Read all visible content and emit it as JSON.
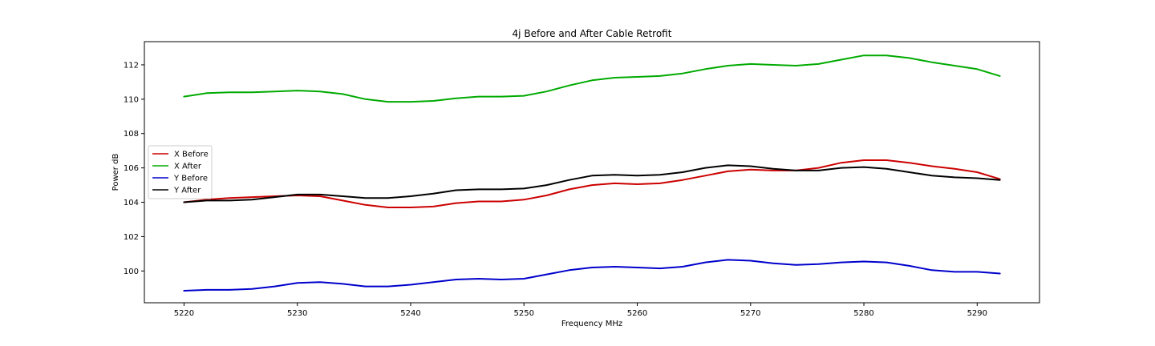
{
  "chart_data": {
    "type": "line",
    "title": "4j Before and After Cable Retrofit",
    "xlabel": "Frequency MHz",
    "ylabel": "Power dB",
    "xlim": [
      5216.5,
      5295.5
    ],
    "ylim": [
      98.15,
      113.35
    ],
    "xticks": [
      5220,
      5230,
      5240,
      5250,
      5260,
      5270,
      5280,
      5290
    ],
    "yticks": [
      100,
      102,
      104,
      106,
      108,
      110,
      112
    ],
    "grid": false,
    "legend_position": "left-center",
    "x": [
      5220,
      5222,
      5224,
      5226,
      5228,
      5230,
      5232,
      5234,
      5236,
      5238,
      5240,
      5242,
      5244,
      5246,
      5248,
      5250,
      5252,
      5254,
      5256,
      5258,
      5260,
      5262,
      5264,
      5266,
      5268,
      5270,
      5272,
      5274,
      5276,
      5278,
      5280,
      5282,
      5284,
      5286,
      5288,
      5290,
      5292
    ],
    "series": [
      {
        "name": "X Before",
        "color": "#cc0000",
        "values": [
          104.0,
          104.15,
          104.25,
          104.3,
          104.35,
          104.4,
          104.35,
          104.1,
          103.85,
          103.7,
          103.7,
          103.75,
          103.95,
          104.05,
          104.05,
          104.15,
          104.4,
          104.75,
          105.0,
          105.1,
          105.05,
          105.1,
          105.3,
          105.55,
          105.8,
          105.9,
          105.85,
          105.85,
          106.0,
          106.3,
          106.45,
          106.45,
          106.3,
          106.1,
          105.95,
          105.75,
          105.35
        ]
      },
      {
        "name": "X After",
        "color": "#00aa00",
        "values": [
          110.15,
          110.35,
          110.4,
          110.4,
          110.45,
          110.5,
          110.45,
          110.3,
          110.0,
          109.85,
          109.85,
          109.9,
          110.05,
          110.15,
          110.15,
          110.2,
          110.45,
          110.8,
          111.1,
          111.25,
          111.3,
          111.35,
          111.5,
          111.75,
          111.95,
          112.05,
          112.0,
          111.95,
          112.05,
          112.3,
          112.55,
          112.55,
          112.4,
          112.15,
          111.95,
          111.75,
          111.35
        ]
      },
      {
        "name": "Y Before",
        "color": "#0000cc",
        "values": [
          98.85,
          98.9,
          98.9,
          98.95,
          99.1,
          99.3,
          99.35,
          99.25,
          99.1,
          99.1,
          99.2,
          99.35,
          99.5,
          99.55,
          99.5,
          99.55,
          99.8,
          100.05,
          100.2,
          100.25,
          100.2,
          100.15,
          100.25,
          100.5,
          100.65,
          100.6,
          100.45,
          100.35,
          100.4,
          100.5,
          100.55,
          100.5,
          100.3,
          100.05,
          99.95,
          99.95,
          99.85
        ]
      },
      {
        "name": "Y After",
        "color": "#000000",
        "values": [
          104.0,
          104.1,
          104.1,
          104.15,
          104.3,
          104.45,
          104.45,
          104.35,
          104.25,
          104.25,
          104.35,
          104.5,
          104.7,
          104.75,
          104.75,
          104.8,
          105.0,
          105.3,
          105.55,
          105.6,
          105.55,
          105.6,
          105.75,
          106.0,
          106.15,
          106.1,
          105.95,
          105.85,
          105.85,
          106.0,
          106.05,
          105.95,
          105.75,
          105.55,
          105.45,
          105.4,
          105.3
        ]
      }
    ]
  }
}
